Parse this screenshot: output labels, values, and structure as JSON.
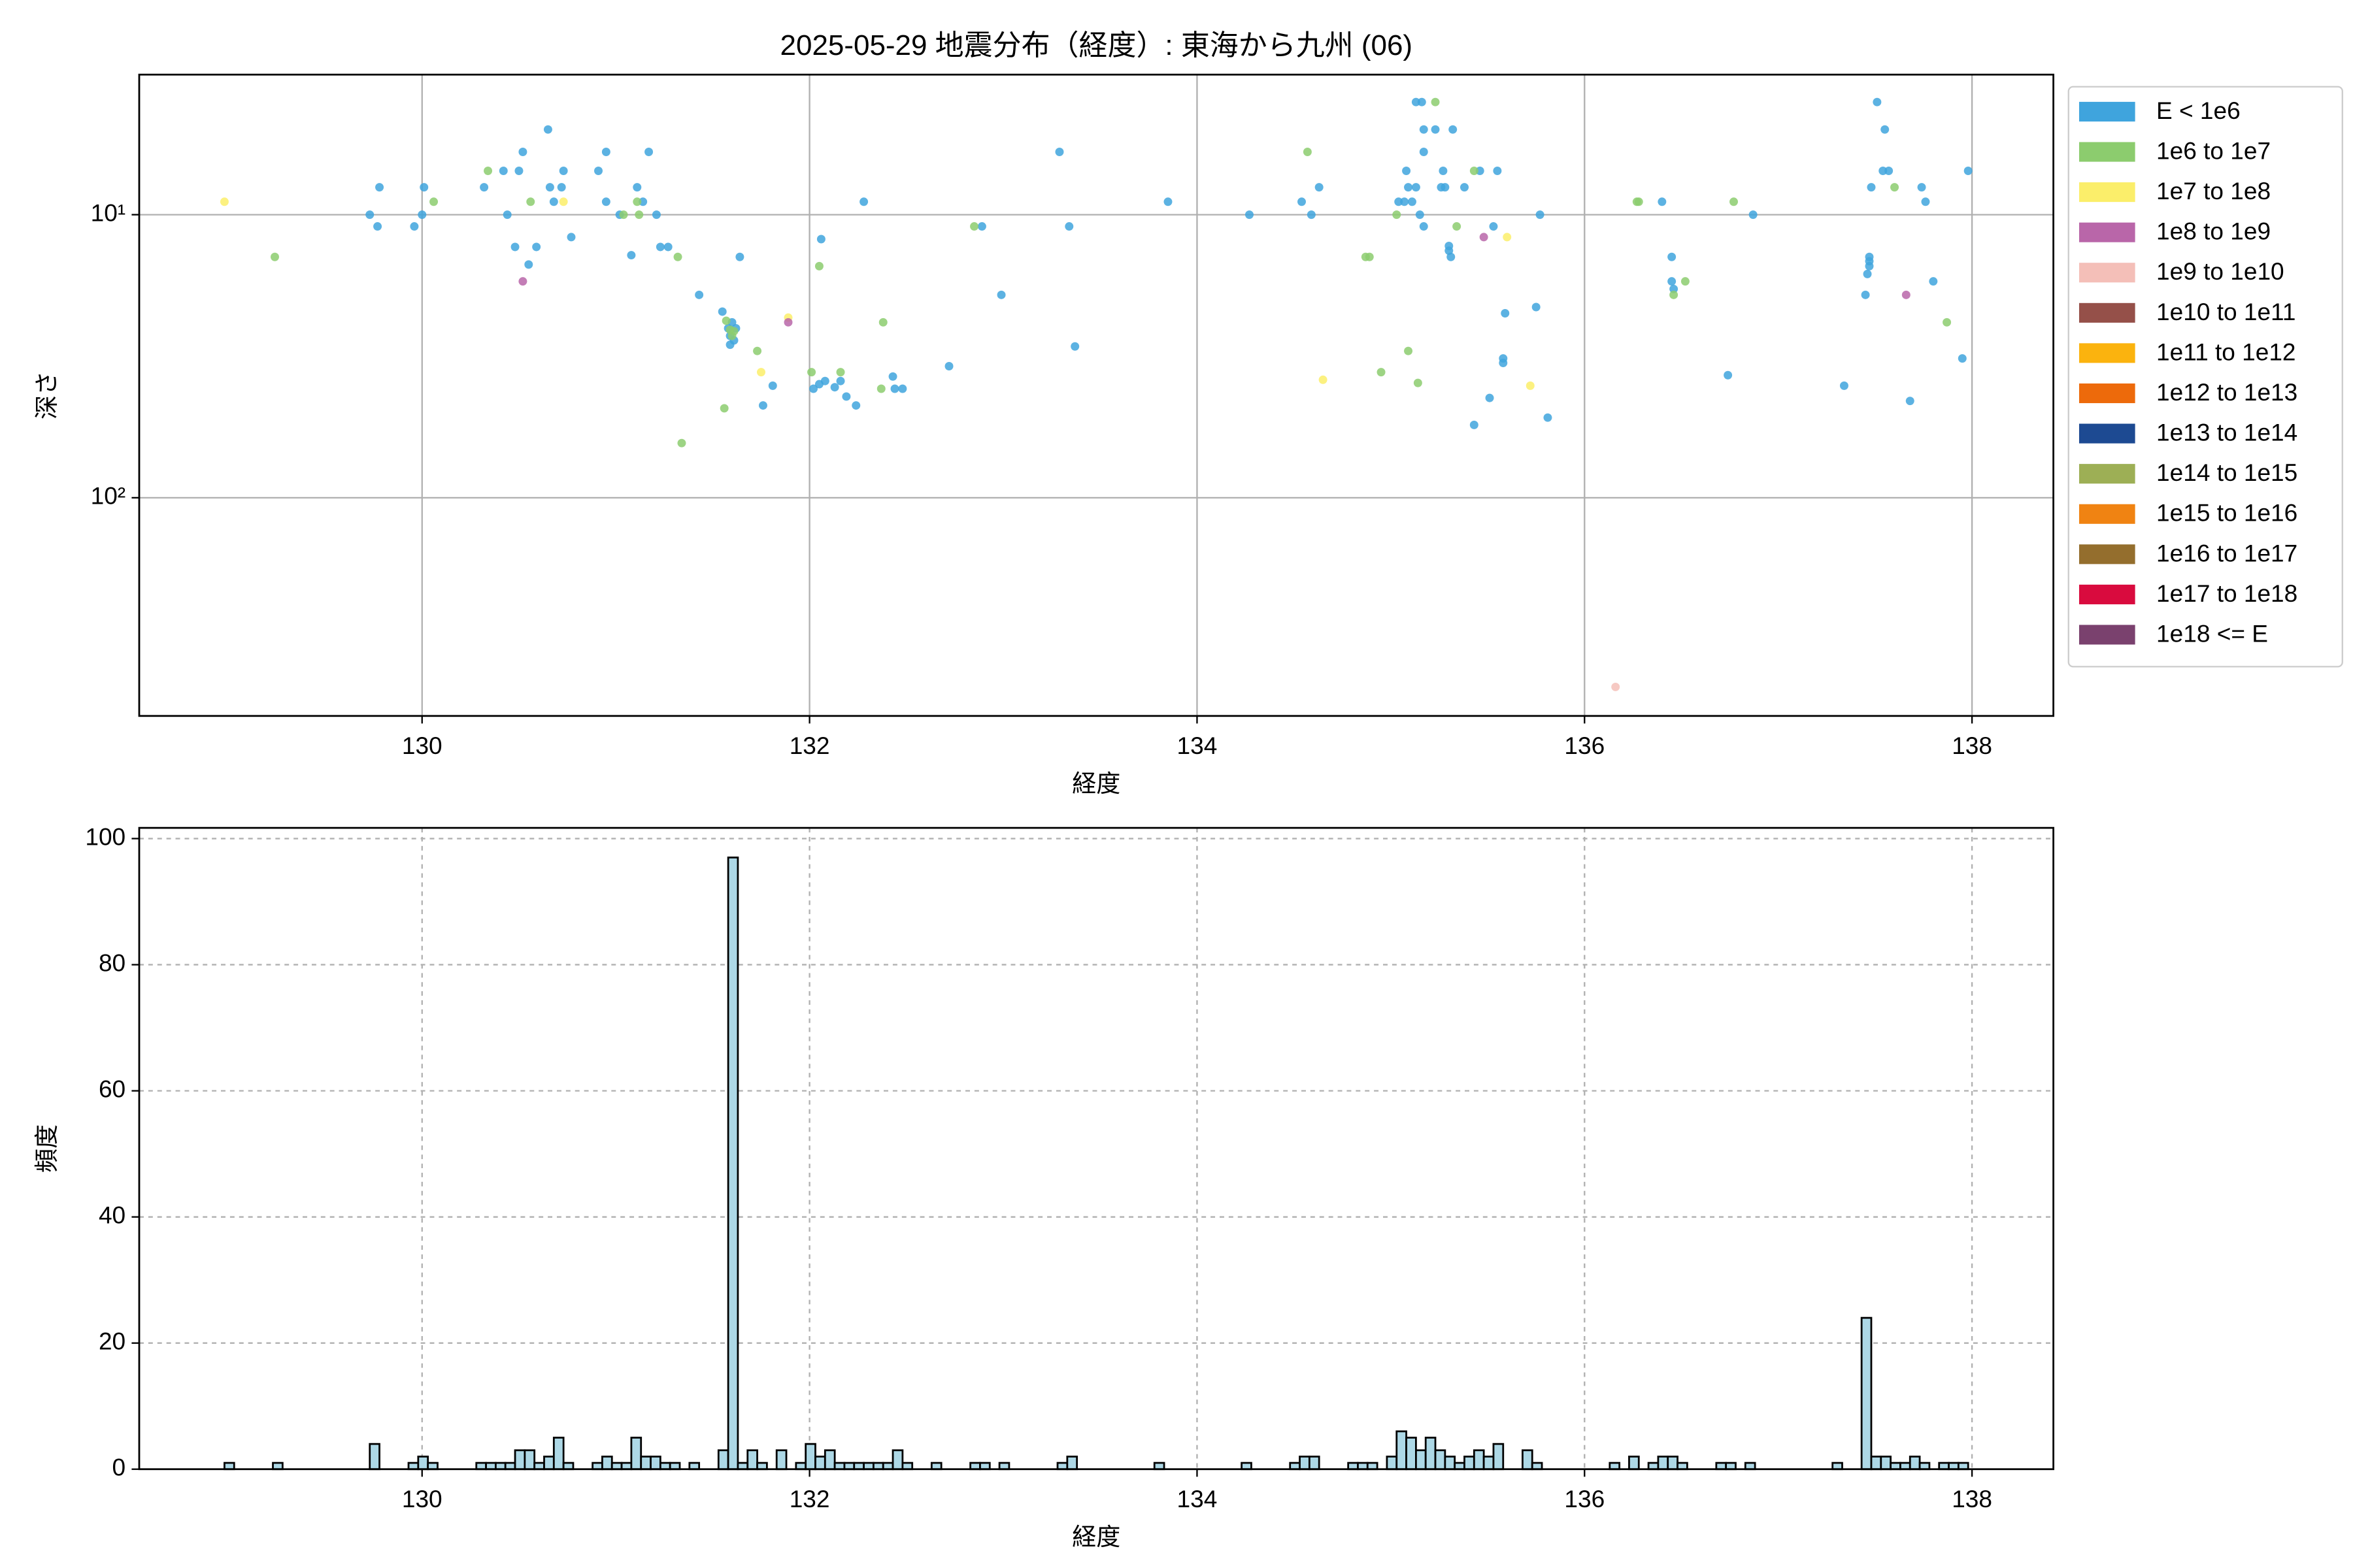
{
  "chart_data": [
    {
      "type": "scatter",
      "title": "2025-05-29 地震分布（経度）: 東海から九州 (06)",
      "xlabel": "経度",
      "ylabel": "深さ",
      "xlim": [
        128.54,
        138.42
      ],
      "xticks": [
        130,
        132,
        134,
        136,
        138
      ],
      "ylim": [
        3.2,
        590
      ],
      "yscale": "log",
      "y_inverted": true,
      "yticks": [
        {
          "value": 10,
          "label": "10¹"
        },
        {
          "value": 100,
          "label": "10²"
        }
      ],
      "grid": true,
      "grid_style": "solid",
      "legend": "outside-upper-right",
      "series": [
        {
          "name": "E < 1e6",
          "color": "#3fa4dd",
          "x": [
            129.73,
            129.77,
            129.78,
            129.96,
            130.0,
            130.01,
            130.32,
            130.42,
            130.44,
            130.48,
            130.5,
            130.52,
            130.55,
            130.59,
            130.65,
            130.66,
            130.68,
            130.72,
            130.73,
            130.77,
            130.91,
            130.95,
            130.95,
            131.02,
            131.08,
            131.11,
            131.14,
            131.17,
            131.21,
            131.23,
            131.27,
            131.43,
            131.55,
            131.58,
            131.59,
            131.59,
            131.6,
            131.61,
            131.62,
            131.64,
            131.76,
            131.81,
            132.02,
            132.05,
            132.06,
            132.08,
            132.13,
            132.16,
            132.19,
            132.24,
            132.28,
            132.43,
            132.44,
            132.48,
            132.72,
            132.89,
            132.99,
            133.29,
            133.34,
            133.37,
            133.85,
            134.27,
            134.54,
            134.59,
            134.63,
            135.04,
            135.07,
            135.08,
            135.09,
            135.11,
            135.13,
            135.13,
            135.15,
            135.16,
            135.17,
            135.17,
            135.17,
            135.23,
            135.26,
            135.27,
            135.28,
            135.3,
            135.3,
            135.31,
            135.32,
            135.38,
            135.43,
            135.46,
            135.51,
            135.53,
            135.55,
            135.58,
            135.58,
            135.59,
            135.75,
            135.77,
            135.81,
            136.4,
            136.45,
            136.45,
            136.46,
            136.74,
            136.87,
            137.34,
            137.45,
            137.46,
            137.47,
            137.47,
            137.47,
            137.48,
            137.51,
            137.54,
            137.55,
            137.57,
            137.68,
            137.74,
            137.76,
            137.8,
            137.95,
            137.98
          ],
          "y": [
            10,
            11,
            8,
            11,
            10,
            8,
            8,
            7,
            10,
            13,
            7,
            6,
            15,
            13,
            5,
            8,
            9,
            8,
            7,
            12,
            7,
            6,
            9,
            10,
            13.9,
            8,
            9,
            6,
            10,
            13,
            13,
            19.2,
            22,
            25.2,
            28.8,
            26.8,
            24,
            27.8,
            25.2,
            14.1,
            47.2,
            40.2,
            41.2,
            39.7,
            12.2,
            38.7,
            40.7,
            38.7,
            43.9,
            47.2,
            9,
            37.3,
            41.2,
            41.2,
            34.3,
            11,
            19.2,
            6,
            11,
            29.2,
            9,
            10,
            9,
            10,
            8,
            9,
            9,
            7,
            8,
            9,
            8,
            4,
            10,
            4,
            5,
            6,
            11,
            5,
            8,
            7,
            8,
            13.4,
            12.9,
            14.1,
            5,
            8,
            55.3,
            7,
            44.4,
            11,
            7,
            32.2,
            33.4,
            22.3,
            21.2,
            10,
            52.1,
            9,
            17.2,
            14.1,
            18.3,
            36.9,
            10,
            40.2,
            19.2,
            16.2,
            15.2,
            14.1,
            14.6,
            8,
            4,
            7,
            5,
            7,
            45.5,
            8,
            9,
            17.2,
            32.2,
            7
          ]
        },
        {
          "name": "1e6 to 1e7",
          "color": "#8ccc6e",
          "x": [
            129.24,
            130.06,
            130.34,
            130.56,
            131.04,
            131.11,
            131.12,
            131.32,
            131.34,
            131.57,
            131.59,
            131.61,
            131.6,
            131.73,
            131.56,
            132.01,
            132.05,
            132.16,
            132.37,
            132.38,
            132.85,
            134.57,
            134.87,
            134.89,
            134.95,
            135.03,
            135.09,
            135.14,
            135.23,
            135.34,
            135.43,
            136.27,
            136.28,
            136.46,
            136.52,
            136.77,
            137.6,
            137.87
          ],
          "y": [
            14.1,
            9,
            7,
            9,
            10,
            9,
            10,
            14.1,
            64.1,
            23.7,
            25.5,
            25.8,
            26.8,
            30.3,
            48.3,
            36,
            15.2,
            36,
            41.2,
            24,
            11,
            6,
            14.1,
            14.1,
            36,
            10,
            30.3,
            39.3,
            4,
            11,
            7,
            9,
            9,
            19.2,
            17.2,
            9,
            8,
            24
          ]
        },
        {
          "name": "1e7 to 1e8",
          "color": "#fbee6a",
          "x": [
            128.98,
            130.73,
            131.75,
            131.89,
            134.65,
            135.6,
            135.72
          ],
          "y": [
            9,
            9,
            36,
            23.1,
            38.3,
            12,
            40.2
          ]
        },
        {
          "name": "1e8 to 1e9",
          "color": "#b966a9",
          "x": [
            130.52,
            131.89,
            135.48,
            137.66
          ],
          "y": [
            17.2,
            24,
            12,
            19.2
          ]
        },
        {
          "name": "1e9 to 1e10",
          "color": "#f4bfb8",
          "x": [
            136.16
          ],
          "y": [
            466
          ]
        },
        {
          "name": "1e10 to 1e11",
          "color": "#955049",
          "x": [],
          "y": []
        },
        {
          "name": "1e11 to 1e12",
          "color": "#fbb30e",
          "x": [],
          "y": []
        },
        {
          "name": "1e12 to 1e13",
          "color": "#ed6a0b",
          "x": [],
          "y": []
        },
        {
          "name": "1e13 to 1e14",
          "color": "#1d4a92",
          "x": [],
          "y": []
        },
        {
          "name": "1e14 to 1e15",
          "color": "#9daf55",
          "x": [],
          "y": []
        },
        {
          "name": "1e15 to 1e16",
          "color": "#f08312",
          "x": [],
          "y": []
        },
        {
          "name": "1e16 to 1e17",
          "color": "#946e2d",
          "x": [],
          "y": []
        },
        {
          "name": "1e17 to 1e18",
          "color": "#d90b3e",
          "x": [],
          "y": []
        },
        {
          "name": "1e18 <= E",
          "color": "#7a416e",
          "x": [],
          "y": []
        }
      ]
    },
    {
      "type": "histogram",
      "xlabel": "経度",
      "ylabel": "頻度",
      "xlim": [
        128.54,
        138.42
      ],
      "xticks": [
        130,
        132,
        134,
        136,
        138
      ],
      "ylim": [
        0,
        101.7
      ],
      "yticks": [
        0,
        20,
        40,
        60,
        80,
        100
      ],
      "grid": true,
      "grid_style": "dashed",
      "color": "#add8e6",
      "edgecolor": "#000000",
      "bins": [
        128.98,
        129.03,
        129.08,
        129.13,
        129.18,
        129.23,
        129.28,
        129.33,
        129.38,
        129.43,
        129.48,
        129.53,
        129.58,
        129.63,
        129.68,
        129.73,
        129.78,
        129.83,
        129.88,
        129.93,
        129.98,
        130.03,
        130.08,
        130.13,
        130.18,
        130.23,
        130.28,
        130.33,
        130.38,
        130.43,
        130.48,
        130.53,
        130.58,
        130.63,
        130.68,
        130.73,
        130.78,
        130.83,
        130.88,
        130.93,
        130.98,
        131.03,
        131.08,
        131.13,
        131.18,
        131.23,
        131.28,
        131.33,
        131.38,
        131.43,
        131.48,
        131.53,
        131.58,
        131.63,
        131.68,
        131.73,
        131.78,
        131.83,
        131.88,
        131.93,
        131.98,
        132.03,
        132.08,
        132.13,
        132.18,
        132.23,
        132.28,
        132.33,
        132.38,
        132.43,
        132.48,
        132.53,
        132.58,
        132.63,
        132.68,
        132.73,
        132.78,
        132.83,
        132.88,
        132.93,
        132.98,
        133.03,
        133.08,
        133.13,
        133.18,
        133.23,
        133.28,
        133.33,
        133.38,
        133.43,
        133.48,
        133.53,
        133.58,
        133.63,
        133.68,
        133.73,
        133.78,
        133.83,
        133.88,
        133.93,
        133.98,
        134.03,
        134.08,
        134.13,
        134.18,
        134.23,
        134.28,
        134.33,
        134.38,
        134.43,
        134.48,
        134.53,
        134.58,
        134.63,
        134.68,
        134.73,
        134.78,
        134.83,
        134.88,
        134.93,
        134.98,
        135.03,
        135.08,
        135.13,
        135.18,
        135.23,
        135.28,
        135.33,
        135.38,
        135.43,
        135.48,
        135.53,
        135.58,
        135.63,
        135.68,
        135.73,
        135.78,
        135.83,
        135.88,
        135.93,
        135.98,
        136.03,
        136.08,
        136.13,
        136.18,
        136.23,
        136.28,
        136.33,
        136.38,
        136.43,
        136.48,
        136.53,
        136.58,
        136.63,
        136.68,
        136.73,
        136.78,
        136.83,
        136.88,
        136.93,
        136.98,
        137.03,
        137.08,
        137.13,
        137.18,
        137.23,
        137.28,
        137.33,
        137.38,
        137.43,
        137.48,
        137.53,
        137.58,
        137.63,
        137.68,
        137.73,
        137.78,
        137.83,
        137.88,
        137.93,
        137.98
      ],
      "values": [
        1,
        0,
        0,
        0,
        0,
        1,
        0,
        0,
        0,
        0,
        0,
        0,
        0,
        0,
        0,
        4,
        0,
        0,
        0,
        1,
        2,
        1,
        0,
        0,
        0,
        0,
        1,
        1,
        1,
        1,
        3,
        3,
        1,
        2,
        5,
        1,
        0,
        0,
        1,
        2,
        1,
        1,
        5,
        2,
        2,
        1,
        1,
        0,
        1,
        0,
        0,
        3,
        97,
        1,
        3,
        1,
        0,
        3,
        0,
        1,
        4,
        2,
        3,
        1,
        1,
        1,
        1,
        1,
        1,
        3,
        1,
        0,
        0,
        1,
        0,
        0,
        0,
        1,
        1,
        0,
        1,
        0,
        0,
        0,
        0,
        0,
        1,
        2,
        0,
        0,
        0,
        0,
        0,
        0,
        0,
        0,
        1,
        0,
        0,
        0,
        0,
        0,
        0,
        0,
        0,
        1,
        0,
        0,
        0,
        0,
        1,
        2,
        2,
        0,
        0,
        0,
        1,
        1,
        1,
        0,
        2,
        6,
        5,
        3,
        5,
        3,
        2,
        1,
        2,
        3,
        2,
        4,
        0,
        0,
        3,
        1,
        0,
        0,
        0,
        0,
        0,
        0,
        0,
        1,
        0,
        2,
        0,
        1,
        2,
        2,
        1,
        0,
        0,
        0,
        1,
        1,
        0,
        1,
        0,
        0,
        0,
        0,
        0,
        0,
        0,
        0,
        1,
        0,
        0,
        24,
        2,
        2,
        1,
        1,
        2,
        1,
        0,
        1,
        1,
        1
      ]
    }
  ]
}
